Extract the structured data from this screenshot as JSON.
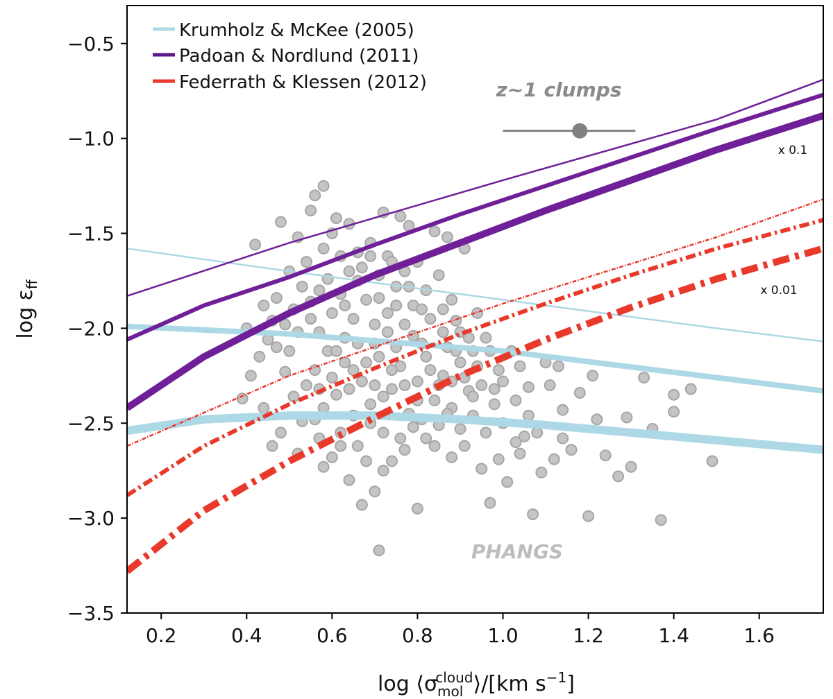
{
  "chart_data": {
    "type": "scatter",
    "title": "",
    "xlabel": {
      "prefix": "log ⟨σ",
      "sub": "mol",
      "sup": "cloud",
      "suffix": "⟩/[km s",
      "unit_sup": "−1",
      "end": "]"
    },
    "ylabel": {
      "prefix": "log ε",
      "sub": "ff"
    },
    "xlim": [
      0.12,
      1.75
    ],
    "ylim": [
      -3.5,
      -0.3
    ],
    "xticks": [
      0.2,
      0.4,
      0.6,
      0.8,
      1.0,
      1.2,
      1.4,
      1.6
    ],
    "xtick_labels": [
      "0.2",
      "0.4",
      "0.6",
      "0.8",
      "1.0",
      "1.2",
      "1.4",
      "1.6"
    ],
    "yticks": [
      -3.5,
      -3.0,
      -2.5,
      -2.0,
      -1.5,
      -1.0,
      -0.5
    ],
    "ytick_labels": [
      "−3.5",
      "−3.0",
      "−2.5",
      "−2.0",
      "−1.5",
      "−1.0",
      "−0.5"
    ],
    "legend": {
      "location": "top-left",
      "entries": [
        {
          "label": "Krumholz & McKee (2005)",
          "color": "#add8e6"
        },
        {
          "label": "Padoan & Nordlund (2011)",
          "color": "#5b1a8c"
        },
        {
          "label": "Federrath & Klessen (2012)",
          "color": "#e8392a"
        }
      ]
    },
    "annotations": {
      "clumps_label": "z~1 clumps",
      "phangs_label": "PHANGS",
      "scale_upper": "x 0.1",
      "scale_lower": "x 0.01"
    },
    "clump_point": {
      "x": 1.18,
      "y": -0.96,
      "xerr_low": 1.0,
      "xerr_high": 1.31,
      "color": "#808080"
    },
    "model_lines": [
      {
        "model": "Krumholz & McKee (2005)",
        "variant": "thin",
        "color": "#add8e6",
        "style": "solid",
        "x": [
          0.12,
          0.5,
          1.0,
          1.5,
          1.75
        ],
        "y": [
          -1.58,
          -1.7,
          -1.85,
          -2.0,
          -2.07
        ]
      },
      {
        "model": "Krumholz & McKee (2005)",
        "variant": "medium",
        "color": "#add8e6",
        "style": "solid",
        "x": [
          0.12,
          0.5,
          1.0,
          1.5,
          1.75
        ],
        "y": [
          -1.99,
          -2.03,
          -2.12,
          -2.26,
          -2.33
        ]
      },
      {
        "model": "Krumholz & McKee (2005)",
        "variant": "thick",
        "color": "#add8e6",
        "style": "solid",
        "x": [
          0.12,
          0.3,
          0.5,
          0.7,
          0.9,
          1.1,
          1.3,
          1.5,
          1.75
        ],
        "y": [
          -2.54,
          -2.48,
          -2.46,
          -2.46,
          -2.48,
          -2.51,
          -2.55,
          -2.59,
          -2.64
        ]
      },
      {
        "model": "Padoan & Nordlund (2011)",
        "variant": "thin",
        "color": "#6f1f97",
        "style": "solid",
        "x": [
          0.12,
          0.5,
          1.0,
          1.5,
          1.75
        ],
        "y": [
          -1.83,
          -1.55,
          -1.22,
          -0.9,
          -0.69
        ]
      },
      {
        "model": "Padoan & Nordlund (2011)",
        "variant": "medium",
        "color": "#6f1f97",
        "style": "solid",
        "x": [
          0.12,
          0.3,
          0.5,
          0.7,
          0.9,
          1.1,
          1.3,
          1.5,
          1.75
        ],
        "y": [
          -2.06,
          -1.88,
          -1.73,
          -1.56,
          -1.4,
          -1.25,
          -1.1,
          -0.95,
          -0.77
        ]
      },
      {
        "model": "Padoan & Nordlund (2011)",
        "variant": "thick",
        "color": "#6f1f97",
        "style": "solid",
        "x": [
          0.12,
          0.3,
          0.5,
          0.7,
          0.9,
          1.1,
          1.3,
          1.5,
          1.75
        ],
        "y": [
          -2.42,
          -2.15,
          -1.92,
          -1.72,
          -1.55,
          -1.38,
          -1.22,
          -1.06,
          -0.88
        ]
      },
      {
        "model": "Federrath & Klessen (2012)",
        "variant": "thin",
        "color": "#e8392a",
        "style": "dashdot",
        "x": [
          0.12,
          0.5,
          1.0,
          1.5,
          1.75
        ],
        "y": [
          -2.62,
          -2.25,
          -1.87,
          -1.52,
          -1.32
        ]
      },
      {
        "model": "Federrath & Klessen (2012)",
        "variant": "medium",
        "color": "#e8392a",
        "style": "dashdot",
        "x": [
          0.12,
          0.3,
          0.5,
          0.7,
          0.9,
          1.1,
          1.3,
          1.5,
          1.75
        ],
        "y": [
          -2.88,
          -2.62,
          -2.4,
          -2.21,
          -2.03,
          -1.87,
          -1.72,
          -1.58,
          -1.43
        ]
      },
      {
        "model": "Federrath & Klessen (2012)",
        "variant": "thick",
        "color": "#e8392a",
        "style": "dashdot",
        "x": [
          0.12,
          0.3,
          0.5,
          0.7,
          0.9,
          1.1,
          1.3,
          1.5,
          1.75
        ],
        "y": [
          -3.28,
          -2.96,
          -2.7,
          -2.47,
          -2.25,
          -2.06,
          -1.89,
          -1.74,
          -1.58
        ]
      }
    ],
    "scatter_series": {
      "name": "PHANGS",
      "color": "#c4c4c4",
      "stroke": "#a6a6a6",
      "points": [
        [
          0.42,
          -1.56
        ],
        [
          0.48,
          -1.44
        ],
        [
          0.52,
          -1.52
        ],
        [
          0.55,
          -1.38
        ],
        [
          0.56,
          -1.3
        ],
        [
          0.58,
          -1.25
        ],
        [
          0.61,
          -1.42
        ],
        [
          0.64,
          -1.45
        ],
        [
          0.6,
          -1.5
        ],
        [
          0.69,
          -1.55
        ],
        [
          0.72,
          -1.39
        ],
        [
          0.76,
          -1.41
        ],
        [
          0.78,
          -1.46
        ],
        [
          0.84,
          -1.49
        ],
        [
          0.87,
          -1.52
        ],
        [
          0.91,
          -1.58
        ],
        [
          0.73,
          -1.62
        ],
        [
          0.66,
          -1.6
        ],
        [
          0.54,
          -1.65
        ],
        [
          0.5,
          -1.7
        ],
        [
          0.47,
          -1.84
        ],
        [
          0.44,
          -1.88
        ],
        [
          0.45,
          -2.06
        ],
        [
          0.43,
          -2.15
        ],
        [
          0.41,
          -2.25
        ],
        [
          0.39,
          -2.37
        ],
        [
          0.49,
          -2.23
        ],
        [
          0.51,
          -2.36
        ],
        [
          0.53,
          -2.49
        ],
        [
          0.48,
          -2.55
        ],
        [
          0.46,
          -2.62
        ],
        [
          0.52,
          -2.66
        ],
        [
          0.57,
          -2.58
        ],
        [
          0.58,
          -2.73
        ],
        [
          0.62,
          -2.62
        ],
        [
          0.64,
          -2.8
        ],
        [
          0.67,
          -2.93
        ],
        [
          0.7,
          -2.86
        ],
        [
          0.71,
          -3.17
        ],
        [
          0.74,
          -2.7
        ],
        [
          0.77,
          -2.64
        ],
        [
          0.8,
          -2.95
        ],
        [
          0.82,
          -2.58
        ],
        [
          0.85,
          -2.51
        ],
        [
          0.88,
          -2.68
        ],
        [
          0.9,
          -2.53
        ],
        [
          0.93,
          -2.46
        ],
        [
          0.95,
          -2.74
        ],
        [
          0.97,
          -2.92
        ],
        [
          0.99,
          -2.69
        ],
        [
          1.01,
          -2.81
        ],
        [
          1.03,
          -2.6
        ],
        [
          1.05,
          -2.57
        ],
        [
          1.07,
          -2.98
        ],
        [
          1.09,
          -2.76
        ],
        [
          1.12,
          -2.69
        ],
        [
          1.14,
          -2.58
        ],
        [
          1.16,
          -2.64
        ],
        [
          1.18,
          -2.34
        ],
        [
          1.2,
          -2.99
        ],
        [
          1.22,
          -2.48
        ],
        [
          1.24,
          -2.67
        ],
        [
          1.27,
          -2.78
        ],
        [
          1.29,
          -2.47
        ],
        [
          1.3,
          -2.73
        ],
        [
          1.33,
          -2.26
        ],
        [
          1.35,
          -2.53
        ],
        [
          1.37,
          -3.01
        ],
        [
          1.4,
          -2.35
        ],
        [
          1.4,
          -2.44
        ],
        [
          1.44,
          -2.32
        ],
        [
          1.49,
          -2.7
        ],
        [
          1.21,
          -2.25
        ],
        [
          1.14,
          -2.43
        ],
        [
          1.1,
          -2.18
        ],
        [
          1.06,
          -2.31
        ],
        [
          1.08,
          -2.55
        ],
        [
          1.03,
          -2.38
        ],
        [
          1.0,
          -2.28
        ],
        [
          0.98,
          -2.4
        ],
        [
          0.96,
          -2.05
        ],
        [
          0.94,
          -2.2
        ],
        [
          0.92,
          -2.33
        ],
        [
          0.89,
          -2.12
        ],
        [
          0.86,
          -2.02
        ],
        [
          0.83,
          -1.95
        ],
        [
          0.81,
          -2.08
        ],
        [
          0.79,
          -1.88
        ],
        [
          0.75,
          -1.78
        ],
        [
          0.73,
          -1.92
        ],
        [
          0.7,
          -1.98
        ],
        [
          0.68,
          -1.85
        ],
        [
          0.66,
          -1.75
        ],
        [
          0.65,
          -1.95
        ],
        [
          0.63,
          -2.05
        ],
        [
          0.62,
          -1.82
        ],
        [
          0.6,
          -1.92
        ],
        [
          0.59,
          -2.12
        ],
        [
          0.57,
          -2.02
        ],
        [
          0.56,
          -2.22
        ],
        [
          0.55,
          -1.95
        ],
        [
          0.54,
          -2.3
        ],
        [
          0.58,
          -2.42
        ],
        [
          0.61,
          -2.35
        ],
        [
          0.63,
          -2.18
        ],
        [
          0.65,
          -2.46
        ],
        [
          0.67,
          -2.28
        ],
        [
          0.69,
          -2.4
        ],
        [
          0.71,
          -2.15
        ],
        [
          0.72,
          -2.55
        ],
        [
          0.74,
          -2.32
        ],
        [
          0.76,
          -2.2
        ],
        [
          0.78,
          -2.45
        ],
        [
          0.8,
          -2.28
        ],
        [
          0.82,
          -2.15
        ],
        [
          0.84,
          -2.38
        ],
        [
          0.86,
          -2.25
        ],
        [
          0.88,
          -2.42
        ],
        [
          0.9,
          -2.18
        ],
        [
          0.92,
          -2.05
        ],
        [
          0.94,
          -1.92
        ],
        [
          0.88,
          -1.85
        ],
        [
          0.85,
          -1.72
        ],
        [
          0.82,
          -1.8
        ],
        [
          0.8,
          -1.65
        ],
        [
          0.77,
          -1.7
        ],
        [
          0.74,
          -1.65
        ],
        [
          0.71,
          -1.72
        ],
        [
          0.69,
          -1.62
        ],
        [
          0.67,
          -1.68
        ],
        [
          0.64,
          -1.7
        ],
        [
          0.62,
          -1.62
        ],
        [
          0.59,
          -1.74
        ],
        [
          0.57,
          -1.8
        ],
        [
          0.55,
          -1.86
        ],
        [
          0.53,
          -1.78
        ],
        [
          0.51,
          -1.9
        ],
        [
          0.49,
          -1.98
        ],
        [
          0.47,
          -2.1
        ],
        [
          0.5,
          -2.12
        ],
        [
          0.52,
          -2.02
        ],
        [
          0.57,
          -2.32
        ],
        [
          0.6,
          -2.26
        ],
        [
          0.66,
          -2.08
        ],
        [
          0.68,
          -2.18
        ],
        [
          0.7,
          -2.08
        ],
        [
          0.73,
          -2.02
        ],
        [
          0.75,
          -2.1
        ],
        [
          0.77,
          -1.98
        ],
        [
          0.79,
          -2.04
        ],
        [
          0.81,
          -1.9
        ],
        [
          0.83,
          -2.22
        ],
        [
          0.87,
          -2.1
        ],
        [
          0.89,
          -1.96
        ],
        [
          0.91,
          -2.26
        ],
        [
          0.93,
          -2.36
        ],
        [
          0.95,
          -2.3
        ],
        [
          0.97,
          -2.12
        ],
        [
          0.99,
          -2.22
        ],
        [
          1.02,
          -2.12
        ],
        [
          1.04,
          -2.2
        ],
        [
          1.06,
          -2.46
        ],
        [
          1.11,
          -2.3
        ],
        [
          1.13,
          -2.2
        ],
        [
          0.62,
          -2.55
        ],
        [
          0.66,
          -2.62
        ],
        [
          0.69,
          -2.5
        ],
        [
          0.73,
          -2.45
        ],
        [
          0.76,
          -2.58
        ],
        [
          0.79,
          -2.52
        ],
        [
          0.84,
          -2.62
        ],
        [
          0.87,
          -2.45
        ],
        [
          0.91,
          -2.62
        ],
        [
          0.96,
          -2.55
        ],
        [
          1.0,
          -2.5
        ],
        [
          1.04,
          -2.66
        ],
        [
          0.6,
          -2.68
        ],
        [
          0.68,
          -2.7
        ],
        [
          0.72,
          -2.75
        ],
        [
          0.56,
          -2.48
        ],
        [
          0.44,
          -2.42
        ],
        [
          0.4,
          -2.0
        ],
        [
          0.46,
          -1.96
        ],
        [
          0.58,
          -1.58
        ],
        [
          0.63,
          -1.88
        ],
        [
          0.71,
          -1.84
        ],
        [
          0.75,
          -1.88
        ],
        [
          0.78,
          -1.78
        ],
        [
          0.86,
          -1.9
        ],
        [
          0.9,
          -2.02
        ],
        [
          0.8,
          -2.38
        ],
        [
          0.74,
          -2.22
        ],
        [
          0.7,
          -2.3
        ],
        [
          0.64,
          -2.32
        ],
        [
          0.61,
          -2.12
        ],
        [
          0.65,
          -2.22
        ],
        [
          0.72,
          -2.36
        ],
        [
          0.77,
          -2.3
        ],
        [
          0.81,
          -2.48
        ],
        [
          0.85,
          -2.3
        ],
        [
          0.88,
          -2.28
        ],
        [
          0.93,
          -2.12
        ],
        [
          0.98,
          -2.32
        ]
      ]
    }
  }
}
